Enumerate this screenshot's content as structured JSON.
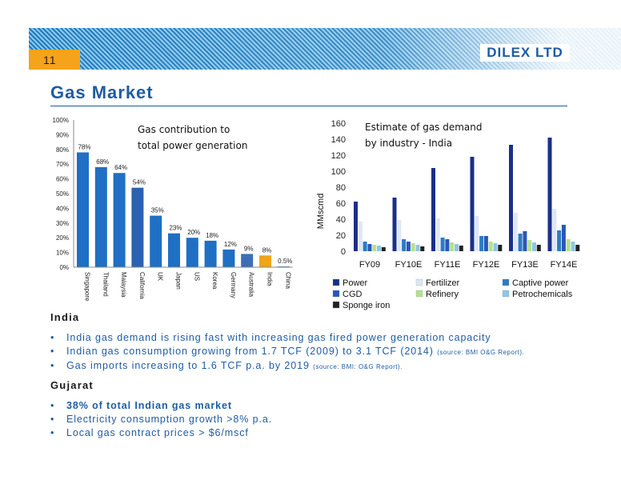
{
  "header": {
    "page_number": "11",
    "logo": "DILEX LTD",
    "title": "Gas Market"
  },
  "colors": {
    "brand_blue": "#1f5ca3",
    "accent_orange": "#f5a31a"
  },
  "chart_data": [
    {
      "type": "bar",
      "title": "Gas contribution to total power generation",
      "categories": [
        "Singapore",
        "Thailand",
        "Malaysia",
        "California",
        "UK",
        "Japan",
        "US",
        "Korea",
        "Germany",
        "Australia",
        "India",
        "China"
      ],
      "values": [
        78,
        68,
        64,
        54,
        35,
        23,
        20,
        18,
        12,
        9,
        8,
        0.5
      ],
      "data_labels": [
        "78%",
        "68%",
        "64%",
        "54%",
        "35%",
        "23%",
        "20%",
        "18%",
        "12%",
        "9%",
        "8%",
        "0.5%"
      ],
      "y_ticks": [
        "0%",
        "10%",
        "20%",
        "30%",
        "40%",
        "50%",
        "60%",
        "70%",
        "80%",
        "90%",
        "100%"
      ],
      "ylim": [
        0,
        100
      ],
      "bar_colors": [
        "#1f6fc4",
        "#1f6fc4",
        "#1f6fc4",
        "#2a62b0",
        "#1f6fc4",
        "#1f6fc4",
        "#1f6fc4",
        "#1f6fc4",
        "#1f6fc4",
        "#3d6eb5",
        "#f0a418",
        "#1f6fc4"
      ],
      "grid": false
    },
    {
      "type": "bar",
      "title": "Estimate of gas demand by industry - India",
      "ylabel": "MMscmd",
      "categories": [
        "FY09",
        "FY10E",
        "FY11E",
        "FY12E",
        "FY13E",
        "FY14E"
      ],
      "y_ticks": [
        "0",
        "20",
        "40",
        "60",
        "80",
        "100",
        "120",
        "140",
        "160"
      ],
      "ylim": [
        0,
        160
      ],
      "legend_position": "bottom",
      "series": [
        {
          "name": "Power",
          "color": "#1b2f8a",
          "values": [
            62,
            67,
            104,
            118,
            133,
            142
          ]
        },
        {
          "name": "Fertilizer",
          "color": "#dde7f4",
          "values": [
            37,
            39,
            41,
            44,
            48,
            53
          ]
        },
        {
          "name": "Captive power",
          "color": "#2b7cc4",
          "values": [
            12,
            15,
            17,
            19,
            22,
            26
          ]
        },
        {
          "name": "CGD",
          "color": "#2a56b8",
          "values": [
            9,
            12,
            15,
            19,
            25,
            33
          ]
        },
        {
          "name": "Refinery",
          "color": "#b6e08e",
          "values": [
            8,
            10,
            11,
            12,
            14,
            15
          ]
        },
        {
          "name": "Petrochemicals",
          "color": "#8ec5e8",
          "values": [
            7,
            8,
            9,
            10,
            11,
            12
          ]
        },
        {
          "name": "Sponge iron",
          "color": "#222222",
          "values": [
            5,
            6,
            7,
            8,
            8,
            8
          ]
        }
      ]
    }
  ],
  "india": {
    "heading": "India",
    "bullets": [
      {
        "text": "India gas demand is rising fast with increasing gas fired power generation capacity",
        "source": ""
      },
      {
        "text": "Indian gas consumption growing from 1.7 TCF (2009) to 3.1 TCF (2014)",
        "source": "(source: BMI O&G Report)."
      },
      {
        "text": "Gas imports increasing to 1.6 TCF p.a. by 2019",
        "source": "(source: BMI: O&G Report)."
      }
    ]
  },
  "gujarat": {
    "heading": "Gujarat",
    "bullets": [
      {
        "text": "38% of total Indian gas market"
      },
      {
        "text": "Electricity consumption growth >8% p.a."
      },
      {
        "text": "Local gas contract prices > $6/mscf"
      }
    ]
  }
}
